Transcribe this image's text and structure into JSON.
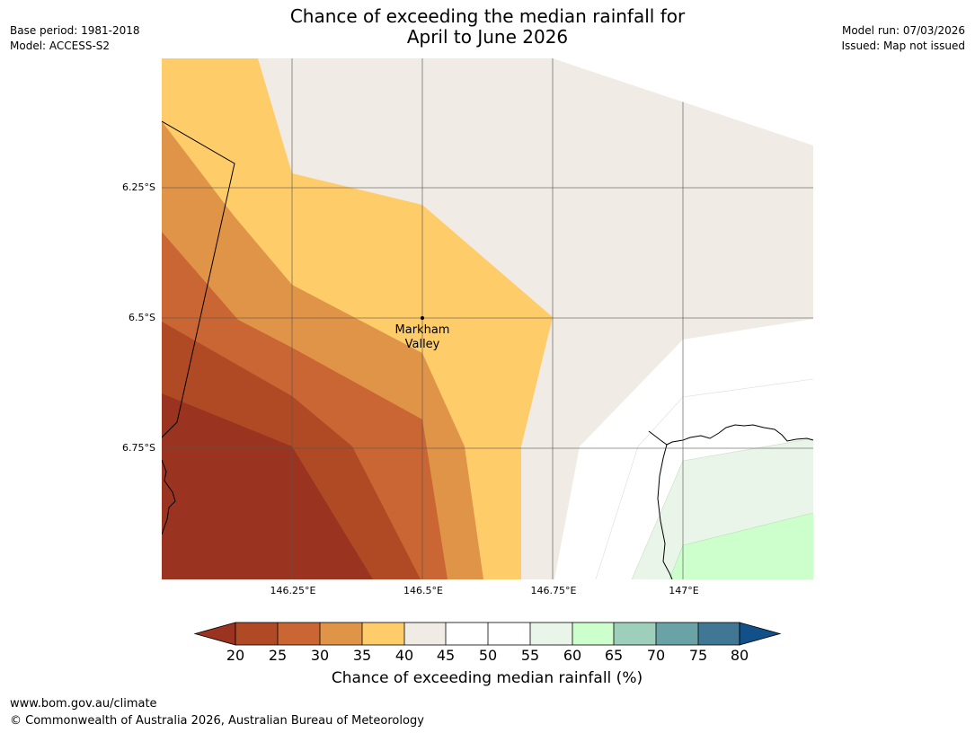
{
  "header": {
    "title_line1": "Chance of exceeding the median rainfall for",
    "title_line2": "April to June 2026",
    "base_period": "Base period: 1981-2018",
    "model": "Model: ACCESS-S2",
    "model_run": "Model run: 07/03/2026",
    "issued": "Issued: Map not issued"
  },
  "map": {
    "latitude_labels": [
      "6.25°S",
      "6.5°S",
      "6.75°S"
    ],
    "longitude_labels": [
      "146.25°E",
      "146.5°E",
      "146.75°E",
      "147°E"
    ],
    "place": {
      "name_line1": "Markham",
      "name_line2": "Valley"
    },
    "colors": {
      "band_lt20": "#9a3320",
      "band_20_25": "#b04a25",
      "band_25_30": "#c96633",
      "band_30_35": "#e09448",
      "band_35_40": "#ffcc6a",
      "band_40_45": "#f0ebe5",
      "band_45_55": "#ffffff",
      "band_55_60": "#eaf5ea",
      "band_60_65": "#ccffcc",
      "band_65_70": "#9ecfba",
      "band_70_75": "#6aa3a6",
      "band_75_80": "#3f7795",
      "band_gt80": "#12508a"
    }
  },
  "colorbar": {
    "ticks": [
      "20",
      "25",
      "30",
      "35",
      "40",
      "45",
      "50",
      "55",
      "60",
      "65",
      "70",
      "75",
      "80"
    ],
    "label": "Chance of exceeding median rainfall (%)"
  },
  "footer": {
    "url": "www.bom.gov.au/climate",
    "copyright": "© Commonwealth of Australia 2026, Australian Bureau of Meteorology"
  }
}
